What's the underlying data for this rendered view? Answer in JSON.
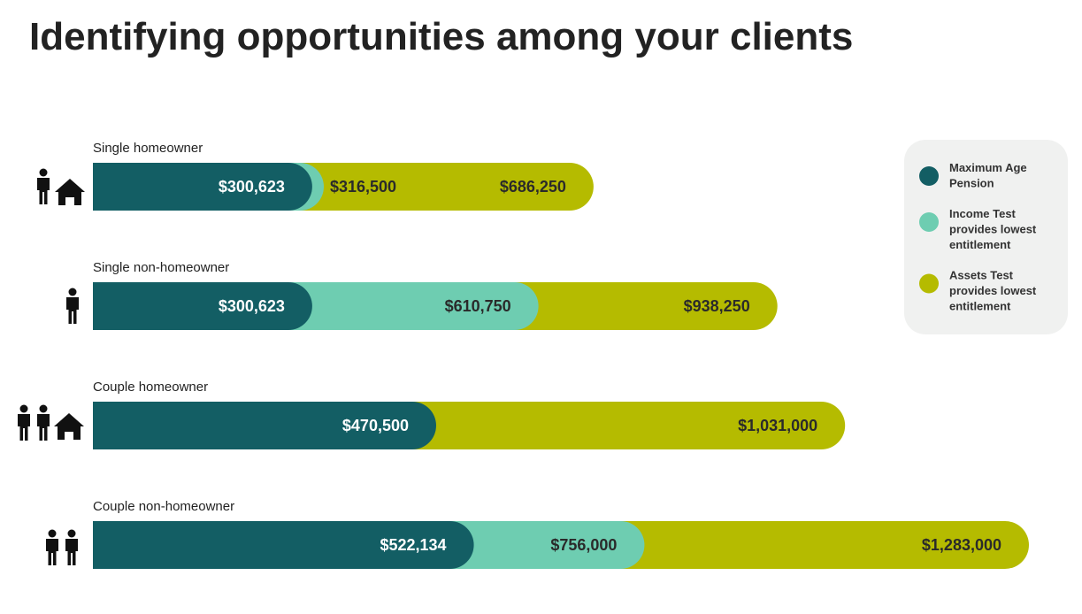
{
  "chart_data": {
    "type": "bar",
    "orientation": "horizontal",
    "title": "Identifying opportunities among your clients",
    "categories": [
      "Single homeowner",
      "Single non-homeowner",
      "Couple homeowner",
      "Couple non-homeowner"
    ],
    "series": [
      {
        "name": "Maximum Age Pension",
        "color": "#135e64",
        "values": [
          300623,
          300623,
          470500,
          522134
        ],
        "value_labels": [
          "$300,623",
          "$300,623",
          "$470,500",
          "$522,134"
        ]
      },
      {
        "name": "Income Test provides lowest entitlement",
        "color": "#6ecdb1",
        "values": [
          316500,
          610750,
          null,
          756000
        ],
        "value_labels": [
          "$316,500",
          "$610,750",
          null,
          "$756,000"
        ]
      },
      {
        "name": "Assets Test provides lowest entitlement",
        "color": "#b5bb00",
        "values": [
          686250,
          938250,
          1031000,
          1283000
        ],
        "value_labels": [
          "$686,250",
          "$938,250",
          "$1,031,000",
          "$1,283,000"
        ]
      }
    ],
    "legend": "right"
  }
}
